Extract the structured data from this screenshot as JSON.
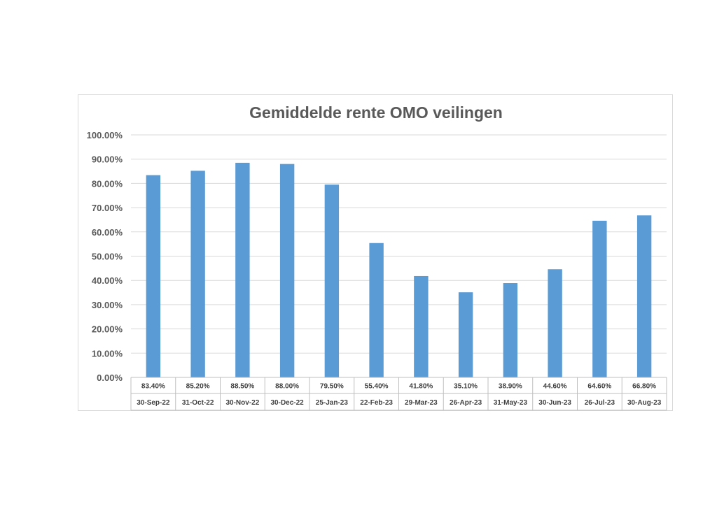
{
  "chart_data": {
    "type": "bar",
    "title": "Gemiddelde rente OMO veilingen",
    "categories": [
      "30-Sep-22",
      "31-Oct-22",
      "30-Nov-22",
      "30-Dec-22",
      "25-Jan-23",
      "22-Feb-23",
      "29-Mar-23",
      "26-Apr-23",
      "31-May-23",
      "30-Jun-23",
      "26-Jul-23",
      "30-Aug-23"
    ],
    "values": [
      83.4,
      85.2,
      88.5,
      88.0,
      79.5,
      55.4,
      41.8,
      35.1,
      38.9,
      44.6,
      64.6,
      66.8
    ],
    "value_labels": [
      "83.40%",
      "85.20%",
      "88.50%",
      "88.00%",
      "79.50%",
      "55.40%",
      "41.80%",
      "35.10%",
      "38.90%",
      "44.60%",
      "64.60%",
      "66.80%"
    ],
    "ylim": [
      0,
      100
    ],
    "yticks": [
      "0.00%",
      "10.00%",
      "20.00%",
      "30.00%",
      "40.00%",
      "50.00%",
      "60.00%",
      "70.00%",
      "80.00%",
      "90.00%",
      "100.00%"
    ],
    "grid": true,
    "legend": "none",
    "data_table": true,
    "bar_color": "#5b9bd5"
  }
}
